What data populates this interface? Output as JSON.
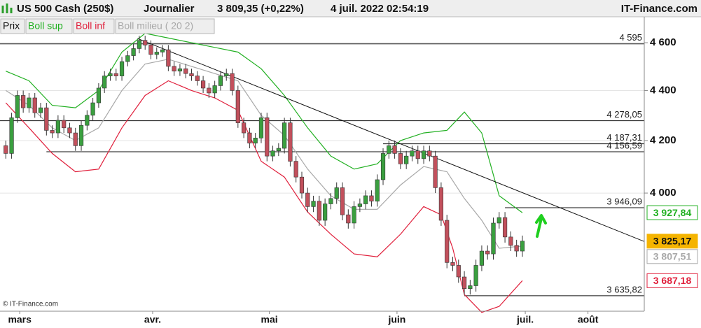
{
  "header": {
    "instrument": "US 500 Cash (250$)",
    "period": "Journalier",
    "quote": "3 809,35 (+0,22%)",
    "datetime": "4 juil. 2022 02:54:19",
    "site": "IT-Finance.com"
  },
  "copyright": "© IT-Finance.com",
  "chart_data": {
    "type": "candlestick",
    "log_scale": true,
    "grid": true,
    "xlim": [
      -1,
      110
    ],
    "ylim": [
      3584,
      4703
    ],
    "yticks": [
      {
        "value": 4600,
        "label": "4 600"
      },
      {
        "value": 4400,
        "label": "4 400"
      },
      {
        "value": 4200,
        "label": "4 200"
      },
      {
        "value": 4000,
        "label": "4 000"
      }
    ],
    "xticks": [
      {
        "value": 2.4,
        "label": "mars"
      },
      {
        "value": 25.3,
        "label": "avr."
      },
      {
        "value": 45.4,
        "label": "mai"
      },
      {
        "value": 67.4,
        "label": "juin"
      },
      {
        "value": 89.5,
        "label": "juil."
      },
      {
        "value": 100.3,
        "label": "août"
      }
    ],
    "candles": {
      "name": "Prix",
      "up_color": "#3a9f3f",
      "down_color": "#c2505c",
      "open": [
        4180,
        4150,
        4290,
        4380,
        4330,
        4370,
        4310,
        4330,
        4240,
        4230,
        4280,
        4250,
        4230,
        4180,
        4260,
        4300,
        4350,
        4410,
        4460,
        4470,
        4460,
        4520,
        4545,
        4575,
        4610,
        4590,
        4550,
        4560,
        4570,
        4500,
        4480,
        4490,
        4470,
        4460,
        4440,
        4410,
        4390,
        4420,
        4460,
        4470,
        4400,
        4270,
        4230,
        4190,
        4210,
        4290,
        4140,
        4160,
        4170,
        4270,
        4120,
        4060,
        4000,
        3950,
        3970,
        3900,
        3960,
        3980,
        4020,
        3920,
        3890,
        3950,
        3960,
        3990,
        3970,
        4050,
        4150,
        4180,
        4150,
        4110,
        4140,
        4160,
        4130,
        4160,
        4140,
        4020,
        3900,
        3750,
        3740,
        3700,
        3660,
        3670,
        3740,
        3790,
        3780,
        3890,
        3910,
        3840,
        3810,
        3790
      ],
      "high": [
        4200,
        4310,
        4400,
        4400,
        4390,
        4390,
        4350,
        4350,
        4260,
        4300,
        4300,
        4270,
        4250,
        4280,
        4320,
        4370,
        4430,
        4480,
        4490,
        4490,
        4540,
        4565,
        4595,
        4630,
        4630,
        4610,
        4580,
        4590,
        4590,
        4520,
        4510,
        4510,
        4490,
        4480,
        4460,
        4430,
        4440,
        4480,
        4490,
        4490,
        4420,
        4290,
        4250,
        4230,
        4310,
        4310,
        4180,
        4190,
        4290,
        4290,
        4140,
        4080,
        4020,
        3990,
        3990,
        3980,
        4000,
        4040,
        4040,
        3940,
        3970,
        3980,
        4010,
        4010,
        4070,
        4170,
        4200,
        4200,
        4170,
        4160,
        4180,
        4180,
        4180,
        4180,
        4160,
        4040,
        3920,
        3770,
        3760,
        3720,
        3690,
        3760,
        3810,
        3810,
        3910,
        3930,
        3930,
        3860,
        3830,
        3845
      ],
      "low": [
        4130,
        4130,
        4270,
        4310,
        4310,
        4290,
        4290,
        4220,
        4210,
        4210,
        4230,
        4210,
        4160,
        4160,
        4240,
        4280,
        4330,
        4390,
        4440,
        4440,
        4440,
        4500,
        4525,
        4555,
        4570,
        4530,
        4530,
        4540,
        4480,
        4460,
        4460,
        4450,
        4440,
        4420,
        4390,
        4370,
        4370,
        4400,
        4440,
        4380,
        4250,
        4210,
        4170,
        4170,
        4190,
        4120,
        4120,
        4140,
        4150,
        4100,
        4040,
        3980,
        3930,
        3930,
        3880,
        3880,
        3940,
        3960,
        3900,
        3870,
        3870,
        3930,
        3940,
        3950,
        3950,
        4030,
        4130,
        4130,
        4090,
        4090,
        4120,
        4110,
        4110,
        4120,
        4000,
        3880,
        3730,
        3720,
        3680,
        3640,
        3640,
        3650,
        3720,
        3760,
        3760,
        3870,
        3820,
        3790,
        3770,
        3770
      ],
      "close": [
        4150,
        4290,
        4380,
        4330,
        4370,
        4310,
        4330,
        4240,
        4230,
        4280,
        4250,
        4230,
        4180,
        4260,
        4300,
        4350,
        4410,
        4460,
        4470,
        4460,
        4520,
        4545,
        4575,
        4610,
        4590,
        4550,
        4560,
        4570,
        4500,
        4480,
        4490,
        4470,
        4460,
        4440,
        4410,
        4390,
        4420,
        4460,
        4470,
        4400,
        4270,
        4230,
        4190,
        4210,
        4290,
        4140,
        4160,
        4170,
        4270,
        4120,
        4060,
        4000,
        3950,
        3970,
        3900,
        3960,
        3980,
        4020,
        3920,
        3890,
        3950,
        3960,
        3990,
        3970,
        4050,
        4150,
        4180,
        4150,
        4110,
        4140,
        4160,
        4130,
        4160,
        4140,
        4020,
        3900,
        3750,
        3740,
        3700,
        3660,
        3670,
        3740,
        3790,
        3780,
        3890,
        3910,
        3840,
        3810,
        3790,
        3825.17
      ],
      "last_label": {
        "value": 3825.17,
        "label": "3 825,17"
      },
      "box_fill": "#f5b400",
      "box_text": "#111"
    },
    "series": [
      {
        "name": "Boll sup",
        "color": "#22b022",
        "x": [
          0,
          4,
          8,
          12,
          16,
          20,
          24,
          28,
          32,
          36,
          40,
          44,
          48,
          52,
          56,
          60,
          64,
          68,
          72,
          76,
          79,
          82,
          85,
          89
        ],
        "values": [
          4480,
          4440,
          4340,
          4330,
          4400,
          4560,
          4640,
          4620,
          4600,
          4580,
          4560,
          4490,
          4380,
          4250,
          4140,
          4090,
          4110,
          4200,
          4230,
          4240,
          4313,
          4230,
          3990,
          3927.84
        ],
        "last_label": {
          "value": 3927.84,
          "label": "3 927,84"
        }
      },
      {
        "name": "Boll inf",
        "color": "#e0203c",
        "x": [
          0,
          4,
          8,
          12,
          16,
          20,
          24,
          28,
          32,
          36,
          40,
          44,
          48,
          52,
          56,
          60,
          64,
          68,
          72,
          75,
          77,
          79,
          82,
          85,
          89
        ],
        "values": [
          4350,
          4250,
          4150,
          4080,
          4090,
          4250,
          4380,
          4440,
          4400,
          4370,
          4320,
          4120,
          4060,
          3930,
          3850,
          3780,
          3770,
          3850,
          3950,
          3920,
          3800,
          3640,
          3580,
          3600,
          3687.18
        ],
        "last_label": {
          "value": 3687.18,
          "label": "3 687,18"
        }
      },
      {
        "name": "Boll milieu ( 20 2)",
        "color": "#a8a8a8",
        "x": [
          0,
          4,
          8,
          12,
          16,
          20,
          24,
          28,
          32,
          36,
          40,
          44,
          48,
          52,
          56,
          60,
          64,
          68,
          72,
          76,
          79,
          82,
          85,
          89
        ],
        "values": [
          4400,
          4340,
          4250,
          4200,
          4250,
          4400,
          4510,
          4530,
          4500,
          4470,
          4440,
          4300,
          4220,
          4090,
          3990,
          3940,
          3940,
          4030,
          4100,
          4080,
          3980,
          3900,
          3800,
          3807.51
        ],
        "last_label": {
          "value": 3807.51,
          "label": "3 807,51"
        }
      }
    ],
    "levels": [
      {
        "value": 4595,
        "label": "4 595",
        "from": -1
      },
      {
        "value": 4278.05,
        "label": "4 278,05",
        "from": -1
      },
      {
        "value": 4187.31,
        "label": "4 187,31",
        "from": 65
      },
      {
        "value": 4156.59,
        "label": "4 156,59",
        "from": 7
      },
      {
        "value": 3946.09,
        "label": "3 946,09",
        "from": 86
      },
      {
        "value": 3635.82,
        "label": "3 635,82",
        "from": 79
      }
    ],
    "trendline": {
      "x": [
        22.7,
        110
      ],
      "values": [
        4618,
        3824
      ]
    }
  }
}
